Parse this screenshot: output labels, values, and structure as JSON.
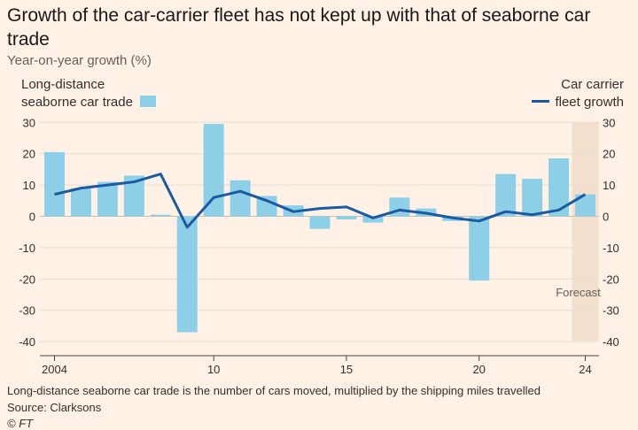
{
  "title": "Growth of the car-carrier fleet has not kept up with that of seaborne car trade",
  "note": "Long-distance seaborne car trade is the number of cars moved, multiplied by the shipping miles travelled",
  "source": "Source: Clarksons",
  "credit": "© FT",
  "chart_data": {
    "type": "bar",
    "title": "Growth of the car-carrier fleet has not kept up with that of seaborne car trade",
    "ylabel": "Year-on-year growth (%)",
    "xlabel": "",
    "ylim": [
      -40,
      30
    ],
    "yticks": [
      30,
      20,
      10,
      0,
      -10,
      -20,
      -30,
      -40
    ],
    "xtick_labels": [
      {
        "year": 2004,
        "label": "2004"
      },
      {
        "year": 2010,
        "label": "10"
      },
      {
        "year": 2015,
        "label": "15"
      },
      {
        "year": 2020,
        "label": "20"
      },
      {
        "year": 2024,
        "label": "24"
      }
    ],
    "x": [
      2004,
      2005,
      2006,
      2007,
      2008,
      2009,
      2010,
      2011,
      2012,
      2013,
      2014,
      2015,
      2016,
      2017,
      2018,
      2019,
      2020,
      2021,
      2022,
      2023,
      2024
    ],
    "series": [
      {
        "name": "Long-distance seaborne car trade",
        "type": "bar",
        "color": "#8ecfe8",
        "values": [
          20.5,
          9,
          11,
          13,
          0.5,
          -37,
          29.5,
          11.5,
          6.5,
          3.5,
          -4,
          -1,
          -2,
          6,
          2.5,
          -1.5,
          -20.5,
          13.5,
          12,
          18.5,
          7
        ]
      },
      {
        "name": "Car carrier fleet growth",
        "type": "line",
        "color": "#1a5aa0",
        "values": [
          7,
          9,
          10,
          11,
          13.5,
          -3.5,
          6,
          8,
          5,
          1.5,
          2.5,
          3,
          -0.5,
          2,
          1,
          -0.5,
          -1.5,
          1.5,
          0.5,
          2,
          7
        ]
      }
    ],
    "legend": {
      "bar_label_lines": [
        "Long-distance",
        "seaborne car trade"
      ],
      "line_label_lines": [
        "Car carrier",
        "fleet growth"
      ]
    },
    "annotations": [
      {
        "text": "Forecast",
        "year": 2024
      }
    ],
    "grid": true
  }
}
